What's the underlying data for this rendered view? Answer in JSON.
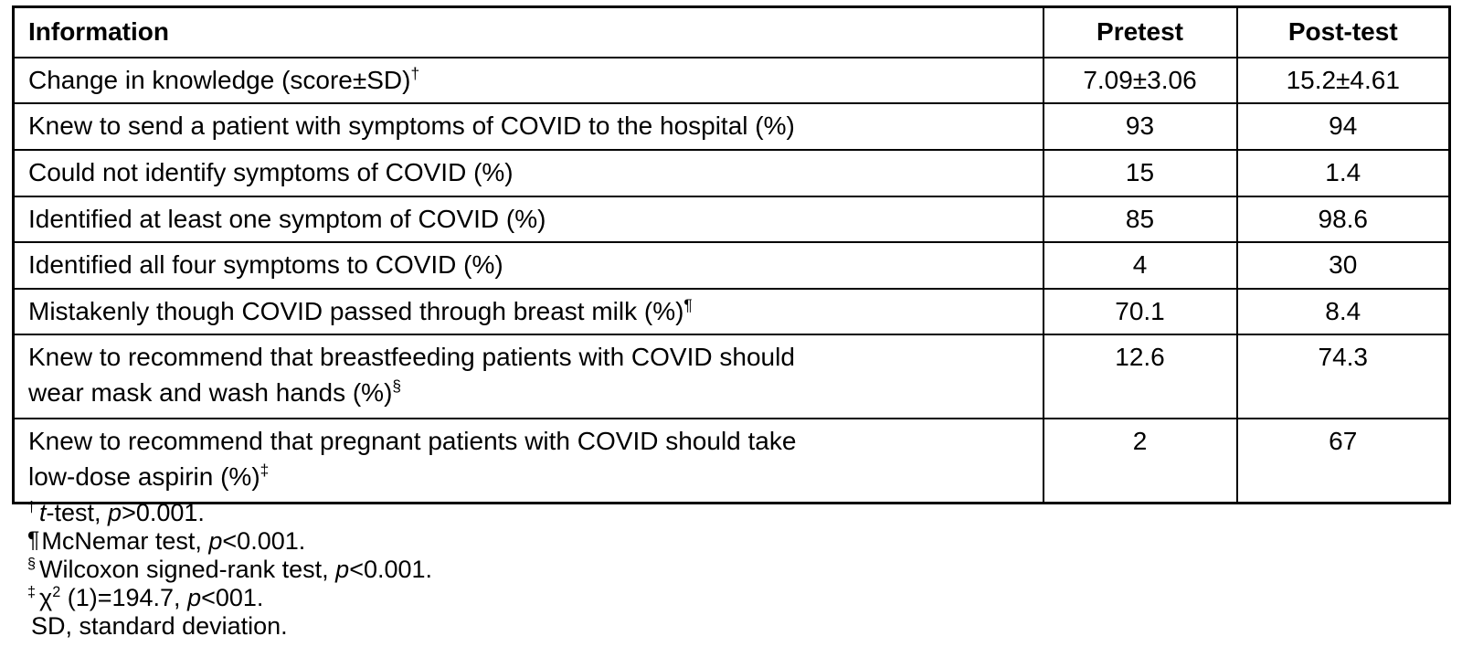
{
  "table": {
    "headers": {
      "information": "Information",
      "pretest": "Pretest",
      "posttest": "Post-test"
    },
    "rows": [
      {
        "label": "Change in knowledge (score±SD)",
        "marker": "†",
        "pretest": "7.09±3.06",
        "posttest": "15.2±4.61"
      },
      {
        "label": "Knew to send a patient with symptoms of COVID to the hospital (%)",
        "pretest": "93",
        "posttest": "94"
      },
      {
        "label": "Could not identify symptoms of COVID (%)",
        "pretest": "15",
        "posttest": "1.4"
      },
      {
        "label": "Identified at least one symptom of COVID (%)",
        "pretest": "85",
        "posttest": "98.6"
      },
      {
        "label": "Identified all four symptoms to COVID (%)",
        "pretest": "4",
        "posttest": "30"
      },
      {
        "label": "Mistakenly though COVID passed through breast milk (%)",
        "marker": "¶",
        "pretest": "70.1",
        "posttest": "8.4"
      },
      {
        "label": "Knew to recommend that breastfeeding patients with COVID should\nwear mask and wash hands (%)",
        "marker": "§",
        "pretest": "12.6",
        "posttest": "74.3"
      },
      {
        "label": "Knew to recommend that pregnant patients with COVID should take\nlow-dose aspirin (%)",
        "marker": "‡",
        "pretest": "2",
        "posttest": "67"
      }
    ]
  },
  "footnotes": [
    {
      "marker": "†",
      "it1": "t",
      "mid": "-test, ",
      "it2": "p",
      "end": ">0.001."
    },
    {
      "marker": "¶",
      "pre": "McNemar test, ",
      "it2": "p",
      "end": "<0.001."
    },
    {
      "marker": "§",
      "pre": "Wilcoxon signed-rank test, ",
      "it2": "p",
      "end": "<0.001."
    },
    {
      "marker": "‡",
      "pre": "χ",
      "chisup": "2",
      "mid": " (1)=194.7, ",
      "it2": "p",
      "end": "<001."
    },
    {
      "pre": "SD, standard deviation."
    }
  ]
}
